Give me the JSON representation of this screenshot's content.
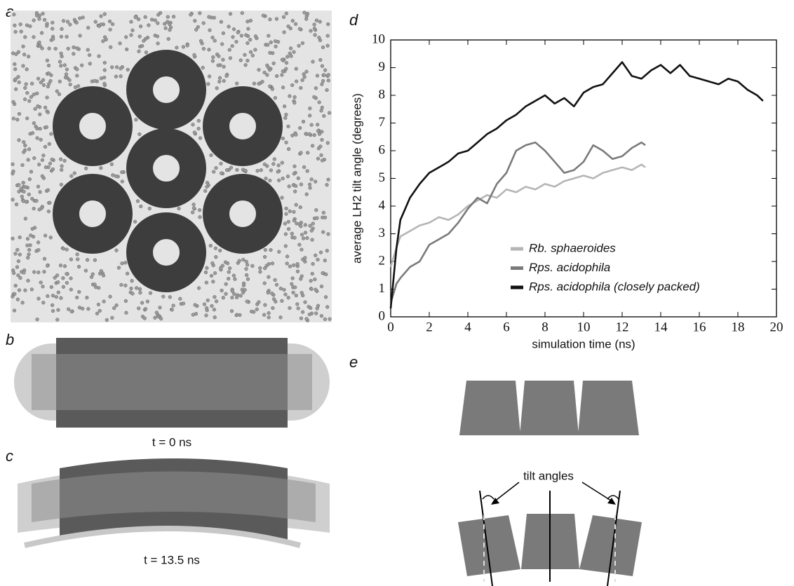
{
  "panels": {
    "a": "a",
    "b": "b",
    "c": "c",
    "d": "d",
    "e": "e"
  },
  "captions": {
    "b": "t = 0 ns",
    "c": "t = 13.5 ns"
  },
  "diagram": {
    "label": "tilt angles"
  },
  "chart_data": {
    "type": "line",
    "xlabel": "simulation time (ns)",
    "ylabel": "average LH2 tilt angle (degrees)",
    "xlim": [
      0,
      20
    ],
    "ylim": [
      0,
      10
    ],
    "xticks": [
      0,
      2,
      4,
      6,
      8,
      10,
      12,
      14,
      16,
      18,
      20
    ],
    "yticks": [
      0,
      1,
      2,
      3,
      4,
      5,
      6,
      7,
      8,
      9,
      10
    ],
    "series": [
      {
        "name": "Rb. sphaeroides",
        "color": "#b5b5b5",
        "x": [
          0,
          0.3,
          0.5,
          1,
          1.5,
          2,
          2.5,
          3,
          3.5,
          4,
          4.5,
          5,
          5.5,
          6,
          6.5,
          7,
          7.5,
          8,
          8.5,
          9,
          9.5,
          10,
          10.5,
          11,
          11.5,
          12,
          12.5,
          13,
          13.2
        ],
        "values": [
          1.8,
          2.5,
          2.9,
          3.1,
          3.3,
          3.4,
          3.6,
          3.5,
          3.7,
          4.0,
          4.2,
          4.4,
          4.3,
          4.6,
          4.5,
          4.7,
          4.6,
          4.8,
          4.7,
          4.9,
          5.0,
          5.1,
          5.0,
          5.2,
          5.3,
          5.4,
          5.3,
          5.5,
          5.4
        ]
      },
      {
        "name": "Rps. acidophila",
        "color": "#7a7a7a",
        "x": [
          0,
          0.3,
          0.5,
          1,
          1.5,
          2,
          2.5,
          3,
          3.5,
          4,
          4.5,
          5,
          5.5,
          6,
          6.5,
          7,
          7.5,
          8,
          8.5,
          9,
          9.5,
          10,
          10.5,
          11,
          11.5,
          12,
          12.5,
          13,
          13.2
        ],
        "values": [
          0.5,
          1.2,
          1.4,
          1.8,
          2.0,
          2.6,
          2.8,
          3.0,
          3.4,
          3.9,
          4.3,
          4.1,
          4.8,
          5.2,
          6.0,
          6.2,
          6.3,
          6.0,
          5.6,
          5.2,
          5.3,
          5.6,
          6.2,
          6.0,
          5.7,
          5.8,
          6.1,
          6.3,
          6.2
        ]
      },
      {
        "name": "Rps. acidophila (closely packed)",
        "color": "#111111",
        "x": [
          0,
          0.3,
          0.5,
          1,
          1.5,
          2,
          2.5,
          3,
          3.5,
          4,
          4.5,
          5,
          5.5,
          6,
          6.5,
          7,
          7.5,
          8,
          8.5,
          9,
          9.5,
          10,
          10.5,
          11,
          11.5,
          12,
          12.5,
          13,
          13.5,
          14,
          14.5,
          15,
          15.5,
          16,
          16.5,
          17,
          17.5,
          18,
          18.5,
          19,
          19.3
        ],
        "values": [
          0.3,
          2.5,
          3.5,
          4.3,
          4.8,
          5.2,
          5.4,
          5.6,
          5.9,
          6.0,
          6.3,
          6.6,
          6.8,
          7.1,
          7.3,
          7.6,
          7.8,
          8.0,
          7.7,
          7.9,
          7.6,
          8.1,
          8.3,
          8.4,
          8.8,
          9.2,
          8.7,
          8.6,
          8.9,
          9.1,
          8.8,
          9.1,
          8.7,
          8.6,
          8.5,
          8.4,
          8.6,
          8.5,
          8.2,
          8.0,
          7.8
        ]
      }
    ]
  }
}
